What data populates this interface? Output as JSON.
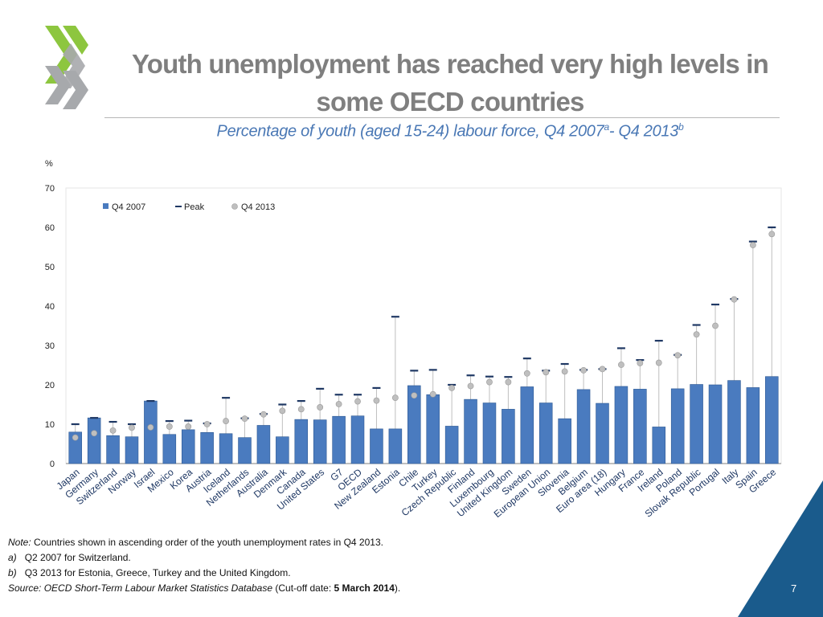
{
  "logo": {
    "icon": "oecd-chevrons-icon",
    "colors": [
      "#8dc63f",
      "#a7a9ac"
    ]
  },
  "title": "Youth unemployment has reached very high levels in some OECD countries",
  "subtitle": {
    "main": "Percentage of youth (aged 15-24) labour force, Q4 2007",
    "sup_a": "a",
    "mid": "- Q4 2013",
    "sup_b": "b"
  },
  "chart_data": {
    "type": "bar",
    "ylabel": "%",
    "ylim": [
      0,
      70
    ],
    "yticks": [
      0,
      10,
      20,
      30,
      40,
      50,
      60,
      70
    ],
    "grid": false,
    "legend": {
      "placement": "top-left"
    },
    "categories": [
      "Japan",
      "Germany",
      "Switzerland",
      "Norway",
      "Israel",
      "Mexico",
      "Korea",
      "Austria",
      "Iceland",
      "Netherlands",
      "Australia",
      "Denmark",
      "Canada",
      "United States",
      "G7",
      "OECD",
      "New Zealand",
      "Estonia",
      "Chile",
      "Turkey",
      "Czech Republic",
      "Finland",
      "Luxembourg",
      "United Kingdom",
      "Sweden",
      "European Union",
      "Slovenia",
      "Belgium",
      "Euro area (18)",
      "Hungary",
      "France",
      "Ireland",
      "Poland",
      "Slovak Republic",
      "Portugal",
      "Italy",
      "Spain",
      "Greece"
    ],
    "series": [
      {
        "name": "Q4 2007",
        "kind": "bar",
        "color": "#4a7bbf",
        "values": [
          8.0,
          11.6,
          7.1,
          6.8,
          15.9,
          7.4,
          8.6,
          7.9,
          7.6,
          6.6,
          9.7,
          6.8,
          11.2,
          11.1,
          12.0,
          12.1,
          8.8,
          8.8,
          19.8,
          17.5,
          9.5,
          16.3,
          15.4,
          13.8,
          19.5,
          15.4,
          11.4,
          18.8,
          15.3,
          19.6,
          18.9,
          9.3,
          19.0,
          20.1,
          20.0,
          21.1,
          19.3,
          22.1
        ]
      },
      {
        "name": "Peak",
        "kind": "dash",
        "color": "#1f3864",
        "values": [
          10.0,
          11.6,
          10.6,
          10.0,
          15.9,
          10.8,
          10.9,
          10.2,
          16.7,
          11.5,
          12.6,
          15.0,
          15.9,
          19.0,
          17.5,
          17.5,
          19.2,
          37.3,
          23.6,
          23.8,
          20.0,
          22.4,
          22.1,
          22.0,
          26.7,
          23.6,
          25.3,
          23.8,
          24.0,
          29.3,
          26.3,
          31.2,
          27.6,
          35.2,
          40.4,
          41.8,
          56.4,
          60.0
        ]
      },
      {
        "name": "Q4 2013",
        "kind": "dot",
        "color": "#bfbfbf",
        "values": [
          6.6,
          7.7,
          8.4,
          9.1,
          9.2,
          9.4,
          9.4,
          10.0,
          10.8,
          11.4,
          12.5,
          13.4,
          13.8,
          14.3,
          15.1,
          15.8,
          16.0,
          16.7,
          17.3,
          17.6,
          19.2,
          19.7,
          20.7,
          20.7,
          22.9,
          23.2,
          23.4,
          23.7,
          24.0,
          25.1,
          25.5,
          25.6,
          27.5,
          32.8,
          35.0,
          41.7,
          55.5,
          58.3
        ]
      }
    ]
  },
  "notes": {
    "note_label": "Note:",
    "note_text": " Countries shown in ascending order of the youth unemployment rates in Q4 2013.",
    "a_label": "a)",
    "a_text": "Q2 2007 for Switzerland.",
    "b_label": "b)",
    "b_text": "Q3 2013 for Estonia, Greece, Turkey and the United Kingdom.",
    "source_label": "Source: OECD Short-Term Labour Market Statistics Database",
    "source_mid": " (Cut-off date: ",
    "source_date": "5 March 2014",
    "source_end": ")."
  },
  "page_number": "7",
  "colors": {
    "corner": "#1a5b8c",
    "title": "#7f7f7f",
    "subtitle": "#4a78b5"
  }
}
